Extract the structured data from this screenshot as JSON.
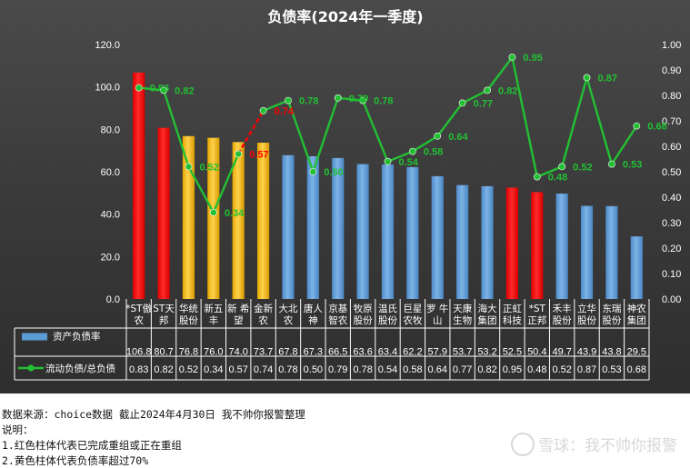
{
  "chart_data": {
    "type": "bar",
    "title": "负债率(2024年一季度)",
    "categories": [
      "*ST傲农",
      "ST天邦",
      "华统股份",
      "新五丰",
      "新希望",
      "金新农",
      "大北农",
      "唐人神",
      "京基智农",
      "牧原股份",
      "温氏股份",
      "巨星农牧",
      "罗牛山",
      "天康生物",
      "海大集团",
      "正虹科技",
      "*ST正邦",
      "禾丰股份",
      "立华股份",
      "东瑞股份",
      "神农集团"
    ],
    "category_lines": [
      [
        "*ST傲",
        "农"
      ],
      [
        "ST天",
        "邦"
      ],
      [
        "华统",
        "股份"
      ],
      [
        "新五",
        "丰"
      ],
      [
        "新 希",
        "望"
      ],
      [
        "金新",
        "农"
      ],
      [
        "大北",
        "农"
      ],
      [
        "唐人",
        "神"
      ],
      [
        "京基",
        "智农"
      ],
      [
        "牧原",
        "股份"
      ],
      [
        "温氏",
        "股份"
      ],
      [
        "巨星",
        "农牧"
      ],
      [
        "罗 牛",
        "山"
      ],
      [
        "天康",
        "生物"
      ],
      [
        "海大",
        "集团"
      ],
      [
        "正虹",
        "科技"
      ],
      [
        "*ST",
        "正邦"
      ],
      [
        "禾丰",
        "股份"
      ],
      [
        "立华",
        "股份"
      ],
      [
        "东瑞",
        "股份"
      ],
      [
        "神农",
        "集团"
      ]
    ],
    "series": [
      {
        "name": "资产负债率",
        "type": "bar",
        "axis": "left",
        "values": [
          106.8,
          80.7,
          76.8,
          76.0,
          74.0,
          73.7,
          67.8,
          67.3,
          66.5,
          63.6,
          63.4,
          62.2,
          57.9,
          53.7,
          53.2,
          52.5,
          50.4,
          49.7,
          43.9,
          43.8,
          29.5
        ],
        "value_labels": [
          "106.8",
          "80.7",
          "76.8",
          "76.0",
          "74.0",
          "73.7",
          "67.8",
          "67.3",
          "66.5",
          "63.6",
          "63.4",
          "62.2",
          "57.9",
          "53.7",
          "53.2",
          "52.5",
          "50.4",
          "49.7",
          "43.9",
          "43.8",
          "29.5"
        ],
        "colors": [
          "#ff0000",
          "#ff0000",
          "#ffc000",
          "#ffc000",
          "#ffc000",
          "#ffc000",
          "#5b9bd5",
          "#5b9bd5",
          "#5b9bd5",
          "#5b9bd5",
          "#5b9bd5",
          "#5b9bd5",
          "#5b9bd5",
          "#5b9bd5",
          "#5b9bd5",
          "#ff0000",
          "#ff0000",
          "#5b9bd5",
          "#5b9bd5",
          "#5b9bd5",
          "#5b9bd5"
        ]
      },
      {
        "name": "流动负债/总负债",
        "type": "line",
        "axis": "right",
        "values": [
          0.83,
          0.82,
          0.52,
          0.34,
          0.57,
          0.74,
          0.78,
          0.5,
          0.79,
          0.78,
          0.54,
          0.58,
          0.64,
          0.77,
          0.82,
          0.95,
          0.48,
          0.52,
          0.87,
          0.53,
          0.68
        ],
        "value_labels": [
          "0.83",
          "0.82",
          "0.52",
          "0.34",
          "0.57",
          "0.74",
          "0.78",
          "0.50",
          "0.79",
          "0.78",
          "0.54",
          "0.58",
          "0.64",
          "0.77",
          "0.82",
          "0.95",
          "0.48",
          "0.52",
          "0.87",
          "0.53",
          "0.68"
        ],
        "color": "#22c033",
        "segment_colors": [
          "#22c033",
          "#22c033",
          "#22c033",
          "#22c033",
          "#ff0000",
          "#22c033",
          "#22c033",
          "#22c033",
          "#22c033",
          "#22c033",
          "#22c033",
          "#22c033",
          "#22c033",
          "#22c033",
          "#22c033",
          "#22c033",
          "#22c033",
          "#22c033",
          "#22c033",
          "#22c033"
        ]
      }
    ],
    "left_axis": {
      "min": 0,
      "max": 120,
      "step": 20,
      "tick_labels": [
        "0.0",
        "20.0",
        "40.0",
        "60.0",
        "80.0",
        "100.0",
        "120.0"
      ]
    },
    "right_axis": {
      "min": 0,
      "max": 1.0,
      "step": 0.1,
      "tick_labels": [
        "0.00",
        "0.10",
        "0.20",
        "0.30",
        "0.40",
        "0.50",
        "0.60",
        "0.70",
        "0.80",
        "0.90",
        "1.00"
      ]
    },
    "legend": "data-table",
    "grid": false
  },
  "colors": {
    "bar_blue": "#5b9bd5",
    "bar_red": "#ff0000",
    "bar_yellow": "#ffc000",
    "line_green": "#22c033",
    "text_light": "#ffffff"
  },
  "notes": {
    "source": "数据来源：choice数据 截止2024年4月30日 我不帅你报警整理",
    "explain_title": "说明：",
    "item1": "1.红色柱体代表已完成重组或正在重组",
    "item2": "2.黄色柱体代表负债率超过70%"
  },
  "watermark": "雪球：我不帅你报警"
}
